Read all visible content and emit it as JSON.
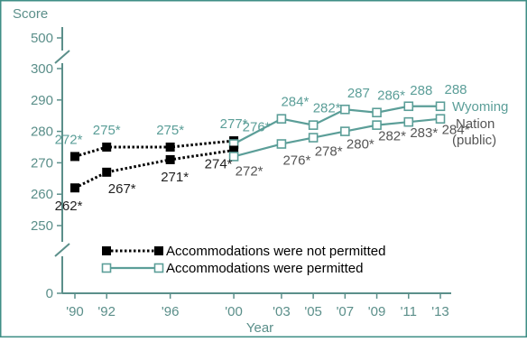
{
  "chart_data": {
    "type": "line",
    "ylabel": "Score",
    "xlabel": "Year",
    "ylim": [
      250,
      300
    ],
    "y_break_top_tick": 500,
    "y_bottom_tick": 0,
    "y_ticks": [
      250,
      260,
      270,
      280,
      290,
      300
    ],
    "categories": [
      "'90",
      "'92",
      "'96",
      "'00",
      "'03",
      "'05",
      "'07",
      "'09",
      "'11",
      "'13"
    ],
    "x_years": [
      1990,
      1992,
      1996,
      2000,
      2003,
      2005,
      2007,
      2009,
      2011,
      2013
    ],
    "series": [
      {
        "name": "Wyoming",
        "accommodations": "not permitted",
        "x": [
          1990,
          1992,
          1996,
          2000
        ],
        "values": [
          272,
          275,
          275,
          277
        ],
        "labels": [
          "272*",
          "275*",
          "275*",
          "277*"
        ],
        "color": "#000000",
        "style": "dotted-filled-square"
      },
      {
        "name": "Wyoming",
        "accommodations": "permitted",
        "x": [
          2000,
          2003,
          2005,
          2007,
          2009,
          2011,
          2013
        ],
        "values": [
          276,
          284,
          282,
          287,
          286,
          288,
          288
        ],
        "labels": [
          "276*",
          "284*",
          "282*",
          "287",
          "286*",
          "288",
          "288"
        ],
        "color": "#5b9e98",
        "style": "solid-open-square"
      },
      {
        "name": "Nation (public)",
        "accommodations": "not permitted",
        "x": [
          1990,
          1992,
          1996,
          2000
        ],
        "values": [
          262,
          267,
          271,
          274
        ],
        "labels": [
          "262*",
          "267*",
          "271*",
          "274*"
        ],
        "color": "#000000",
        "style": "dotted-filled-square"
      },
      {
        "name": "Nation (public)",
        "accommodations": "permitted",
        "x": [
          2000,
          2003,
          2005,
          2007,
          2009,
          2011,
          2013
        ],
        "values": [
          272,
          276,
          278,
          280,
          282,
          283,
          284
        ],
        "labels": [
          "272*",
          "276*",
          "278*",
          "280*",
          "282*",
          "283*",
          "284*"
        ],
        "color": "#5b9e98",
        "style": "solid-open-square"
      }
    ],
    "line_labels": {
      "wyoming": "Wyoming",
      "nation_line1": "Nation",
      "nation_line2": "(public)"
    },
    "legend": [
      {
        "label": "Accommodations were not permitted",
        "style": "dotted-filled-square",
        "color": "#000000"
      },
      {
        "label": "Accommodations were permitted",
        "style": "solid-open-square",
        "color": "#5b9e98"
      }
    ],
    "grid": false
  },
  "colors": {
    "axis": "#5b8f8a",
    "teal": "#5b9e98",
    "frame": "#3f8f86",
    "black": "#000000"
  }
}
